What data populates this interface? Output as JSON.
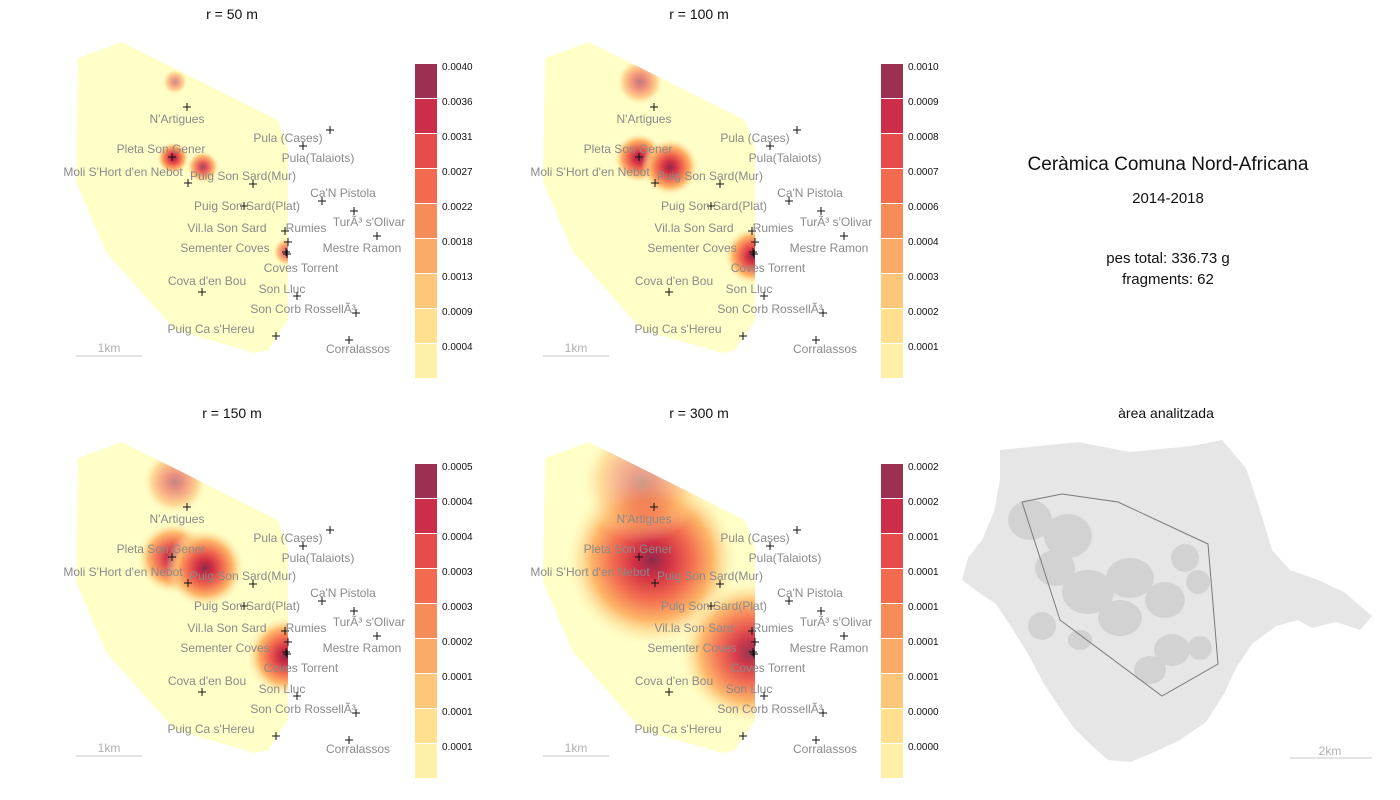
{
  "panels": [
    {
      "title": "r =  50 m",
      "legend": [
        "0.0040",
        "0.0036",
        "0.0031",
        "0.0027",
        "0.0022",
        "0.0018",
        "0.0013",
        "0.0009",
        "0.0004"
      ]
    },
    {
      "title": "r =  100 m",
      "legend": [
        "0.0010",
        "0.0009",
        "0.0008",
        "0.0007",
        "0.0006",
        "0.0004",
        "0.0003",
        "0.0002",
        "0.0001"
      ]
    },
    {
      "title": "r =  150 m",
      "legend": [
        "0.0005",
        "0.0004",
        "0.0004",
        "0.0003",
        "0.0003",
        "0.0002",
        "0.0001",
        "0.0001",
        "0.0001"
      ]
    },
    {
      "title": "r =  300 m",
      "legend": [
        "0.0002",
        "0.0002",
        "0.0001",
        "0.0001",
        "0.0001",
        "0.0001",
        "0.0001",
        "0.0000",
        "0.0000"
      ]
    }
  ],
  "legend_colors": [
    "#9c3050",
    "#cc2e4a",
    "#e74b4c",
    "#f26b4f",
    "#f68c58",
    "#fbaa67",
    "#fdc678",
    "#fee08e",
    "#fff0a8"
  ],
  "sites": [
    {
      "name": "N'Artigues"
    },
    {
      "name": "Pula (Cases)"
    },
    {
      "name": "Pleta Son Gener"
    },
    {
      "name": "Pula(Talaiots)"
    },
    {
      "name": "Moli S'Hort d'en Nebot"
    },
    {
      "name": "Puig Son Sard(Mur)"
    },
    {
      "name": "Ca'N Pistola"
    },
    {
      "name": "Puig Son Sard(Plat)"
    },
    {
      "name": "TurÃ³ s'Olivar"
    },
    {
      "name": "Vil.la Son Sard"
    },
    {
      "name": "Rumies"
    },
    {
      "name": "Sementer Coves"
    },
    {
      "name": "Mestre Ramon"
    },
    {
      "name": "Coves  Torrent"
    },
    {
      "name": "Cova d'en Bou"
    },
    {
      "name": "Son Lluc"
    },
    {
      "name": "Son Corb RossellÃ³"
    },
    {
      "name": "Puig  Ca s'Hereu"
    },
    {
      "name": "Corralassos"
    }
  ],
  "scale_small": "1km",
  "scale_large": "2km",
  "info": {
    "title": "Ceràmica Comuna Nord-Africana",
    "years": "2014-2018",
    "weight": "pes total:  336.73 g",
    "fragments": "fragments:  62"
  },
  "area_title": "àrea analitzada"
}
